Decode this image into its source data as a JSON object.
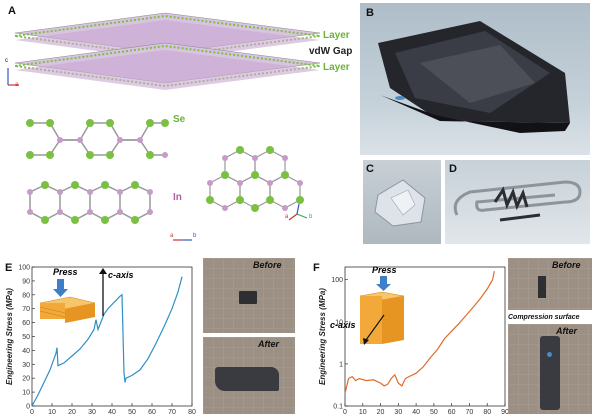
{
  "panels": {
    "A": {
      "label": "A",
      "layer_top": "Layer",
      "vdw_gap": "vdW Gap",
      "layer_bottom": "Layer",
      "se_label": "Se",
      "in_label": "In",
      "axes_labels": {
        "c": "c",
        "a": "a",
        "b": "b"
      }
    },
    "B": {
      "label": "B"
    },
    "C": {
      "label": "C"
    },
    "D": {
      "label": "D"
    },
    "E": {
      "label": "E",
      "press": "Press",
      "c_axis": "c-axis",
      "before": "Before",
      "after": "After"
    },
    "F": {
      "label": "F",
      "press": "Press",
      "c_axis": "c-axis",
      "before": "Before",
      "after": "After",
      "compression_surface": "Compression surface"
    }
  },
  "colors": {
    "se": "#7cc043",
    "in": "#c79bc8",
    "curve": "#2f8fc4",
    "curve_f": "#e06a2c"
  },
  "chart_data": [
    {
      "type": "line",
      "panel": "E",
      "ylabel": "Engineering Stress (MPa)",
      "xlabel": "",
      "xlim": [
        0,
        80
      ],
      "ylim": [
        0,
        100
      ],
      "xticks": [
        0,
        10,
        20,
        30,
        40,
        50,
        60,
        70,
        80
      ],
      "yticks": [
        0,
        10,
        20,
        30,
        40,
        50,
        60,
        70,
        80,
        90,
        100
      ],
      "grid": false,
      "series": [
        {
          "x": [
            0,
            3,
            6,
            9,
            12,
            12.5,
            13,
            16,
            20,
            24,
            28,
            31,
            32,
            33,
            36,
            38,
            40,
            42,
            44,
            45,
            46,
            46.5,
            47,
            50,
            54,
            58,
            62,
            66,
            70,
            73,
            75
          ],
          "y": [
            0,
            8,
            17,
            26,
            38,
            42,
            29,
            31,
            36,
            41,
            48,
            55,
            62,
            55,
            66,
            70,
            73,
            76,
            79,
            80,
            24,
            17,
            20,
            22,
            26,
            34,
            45,
            57,
            70,
            82,
            93
          ]
        }
      ]
    },
    {
      "type": "line",
      "panel": "F",
      "ylabel": "Engineering Stress (MPa)",
      "xlabel": "",
      "xscale": "linear",
      "yscale": "log",
      "xlim": [
        0,
        90
      ],
      "ylim": [
        0.1,
        200
      ],
      "xticks": [
        0,
        10,
        20,
        30,
        40,
        50,
        60,
        70,
        80,
        90
      ],
      "yticks": [
        0.1,
        1,
        10,
        100
      ],
      "grid": false,
      "series": [
        {
          "x": [
            0,
            2,
            4,
            6,
            8,
            12,
            16,
            20,
            22,
            24,
            26,
            28,
            30,
            32,
            34,
            36,
            40,
            44,
            48,
            52,
            56,
            60,
            64,
            68,
            72,
            76,
            80,
            83,
            84
          ],
          "y": [
            0.2,
            0.45,
            0.5,
            0.4,
            0.45,
            0.4,
            0.42,
            0.35,
            0.3,
            0.33,
            0.45,
            0.55,
            0.35,
            0.3,
            0.45,
            0.5,
            0.6,
            0.85,
            1.4,
            2.2,
            4,
            6,
            9,
            14,
            22,
            35,
            60,
            100,
            160
          ]
        }
      ]
    }
  ]
}
